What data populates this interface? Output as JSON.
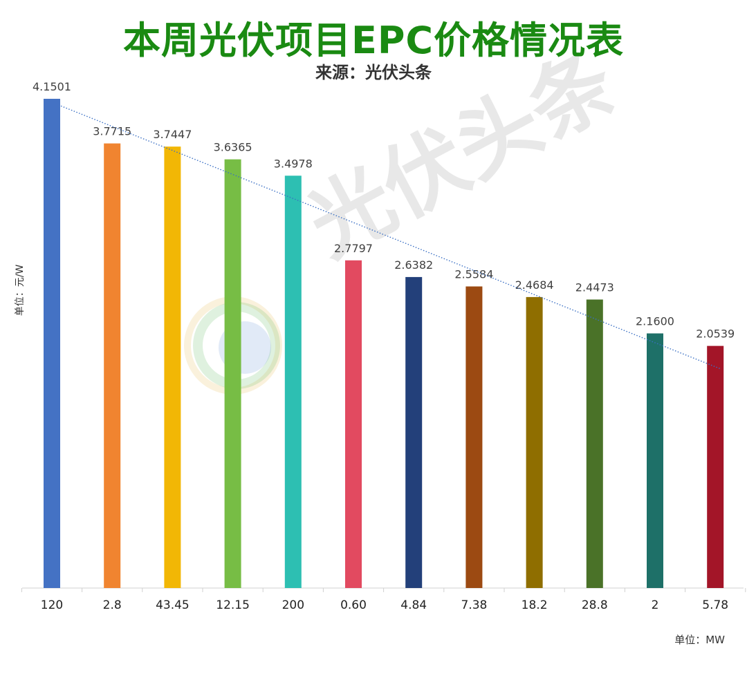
{
  "title": "本周光伏项目EPC价格情况表",
  "subtitle": "来源：光伏头条",
  "watermark": "光伏头条",
  "chart_data": {
    "type": "bar",
    "title": "本周光伏项目EPC价格情况表",
    "subtitle": "来源：光伏头条",
    "ylabel": "单位：元/W",
    "xunit": "单位：MW",
    "ylim": [
      0,
      4.15
    ],
    "categories": [
      "120",
      "2.8",
      "43.45",
      "12.15",
      "200",
      "0.60",
      "4.84",
      "7.38",
      "18.2",
      "28.8",
      "2",
      "5.78"
    ],
    "values": [
      4.1501,
      3.7715,
      3.7447,
      3.6365,
      3.4978,
      2.7797,
      2.6382,
      2.5584,
      2.4684,
      2.4473,
      2.16,
      2.0539
    ],
    "value_labels": [
      "4.1501",
      "3.7715",
      "3.7447",
      "3.6365",
      "3.4978",
      "2.7797",
      "2.6382",
      "2.5584",
      "2.4684",
      "2.4473",
      "2.1600",
      "2.0539"
    ],
    "colors": [
      "#4472c4",
      "#f08430",
      "#f2b705",
      "#77bd45",
      "#2dbfb2",
      "#e24a60",
      "#23407a",
      "#9c4a12",
      "#8f6e00",
      "#4a7228",
      "#1e7068",
      "#a31528"
    ],
    "trendline": {
      "style": "dotted",
      "color": "#3a6fc4"
    },
    "grid": false
  }
}
